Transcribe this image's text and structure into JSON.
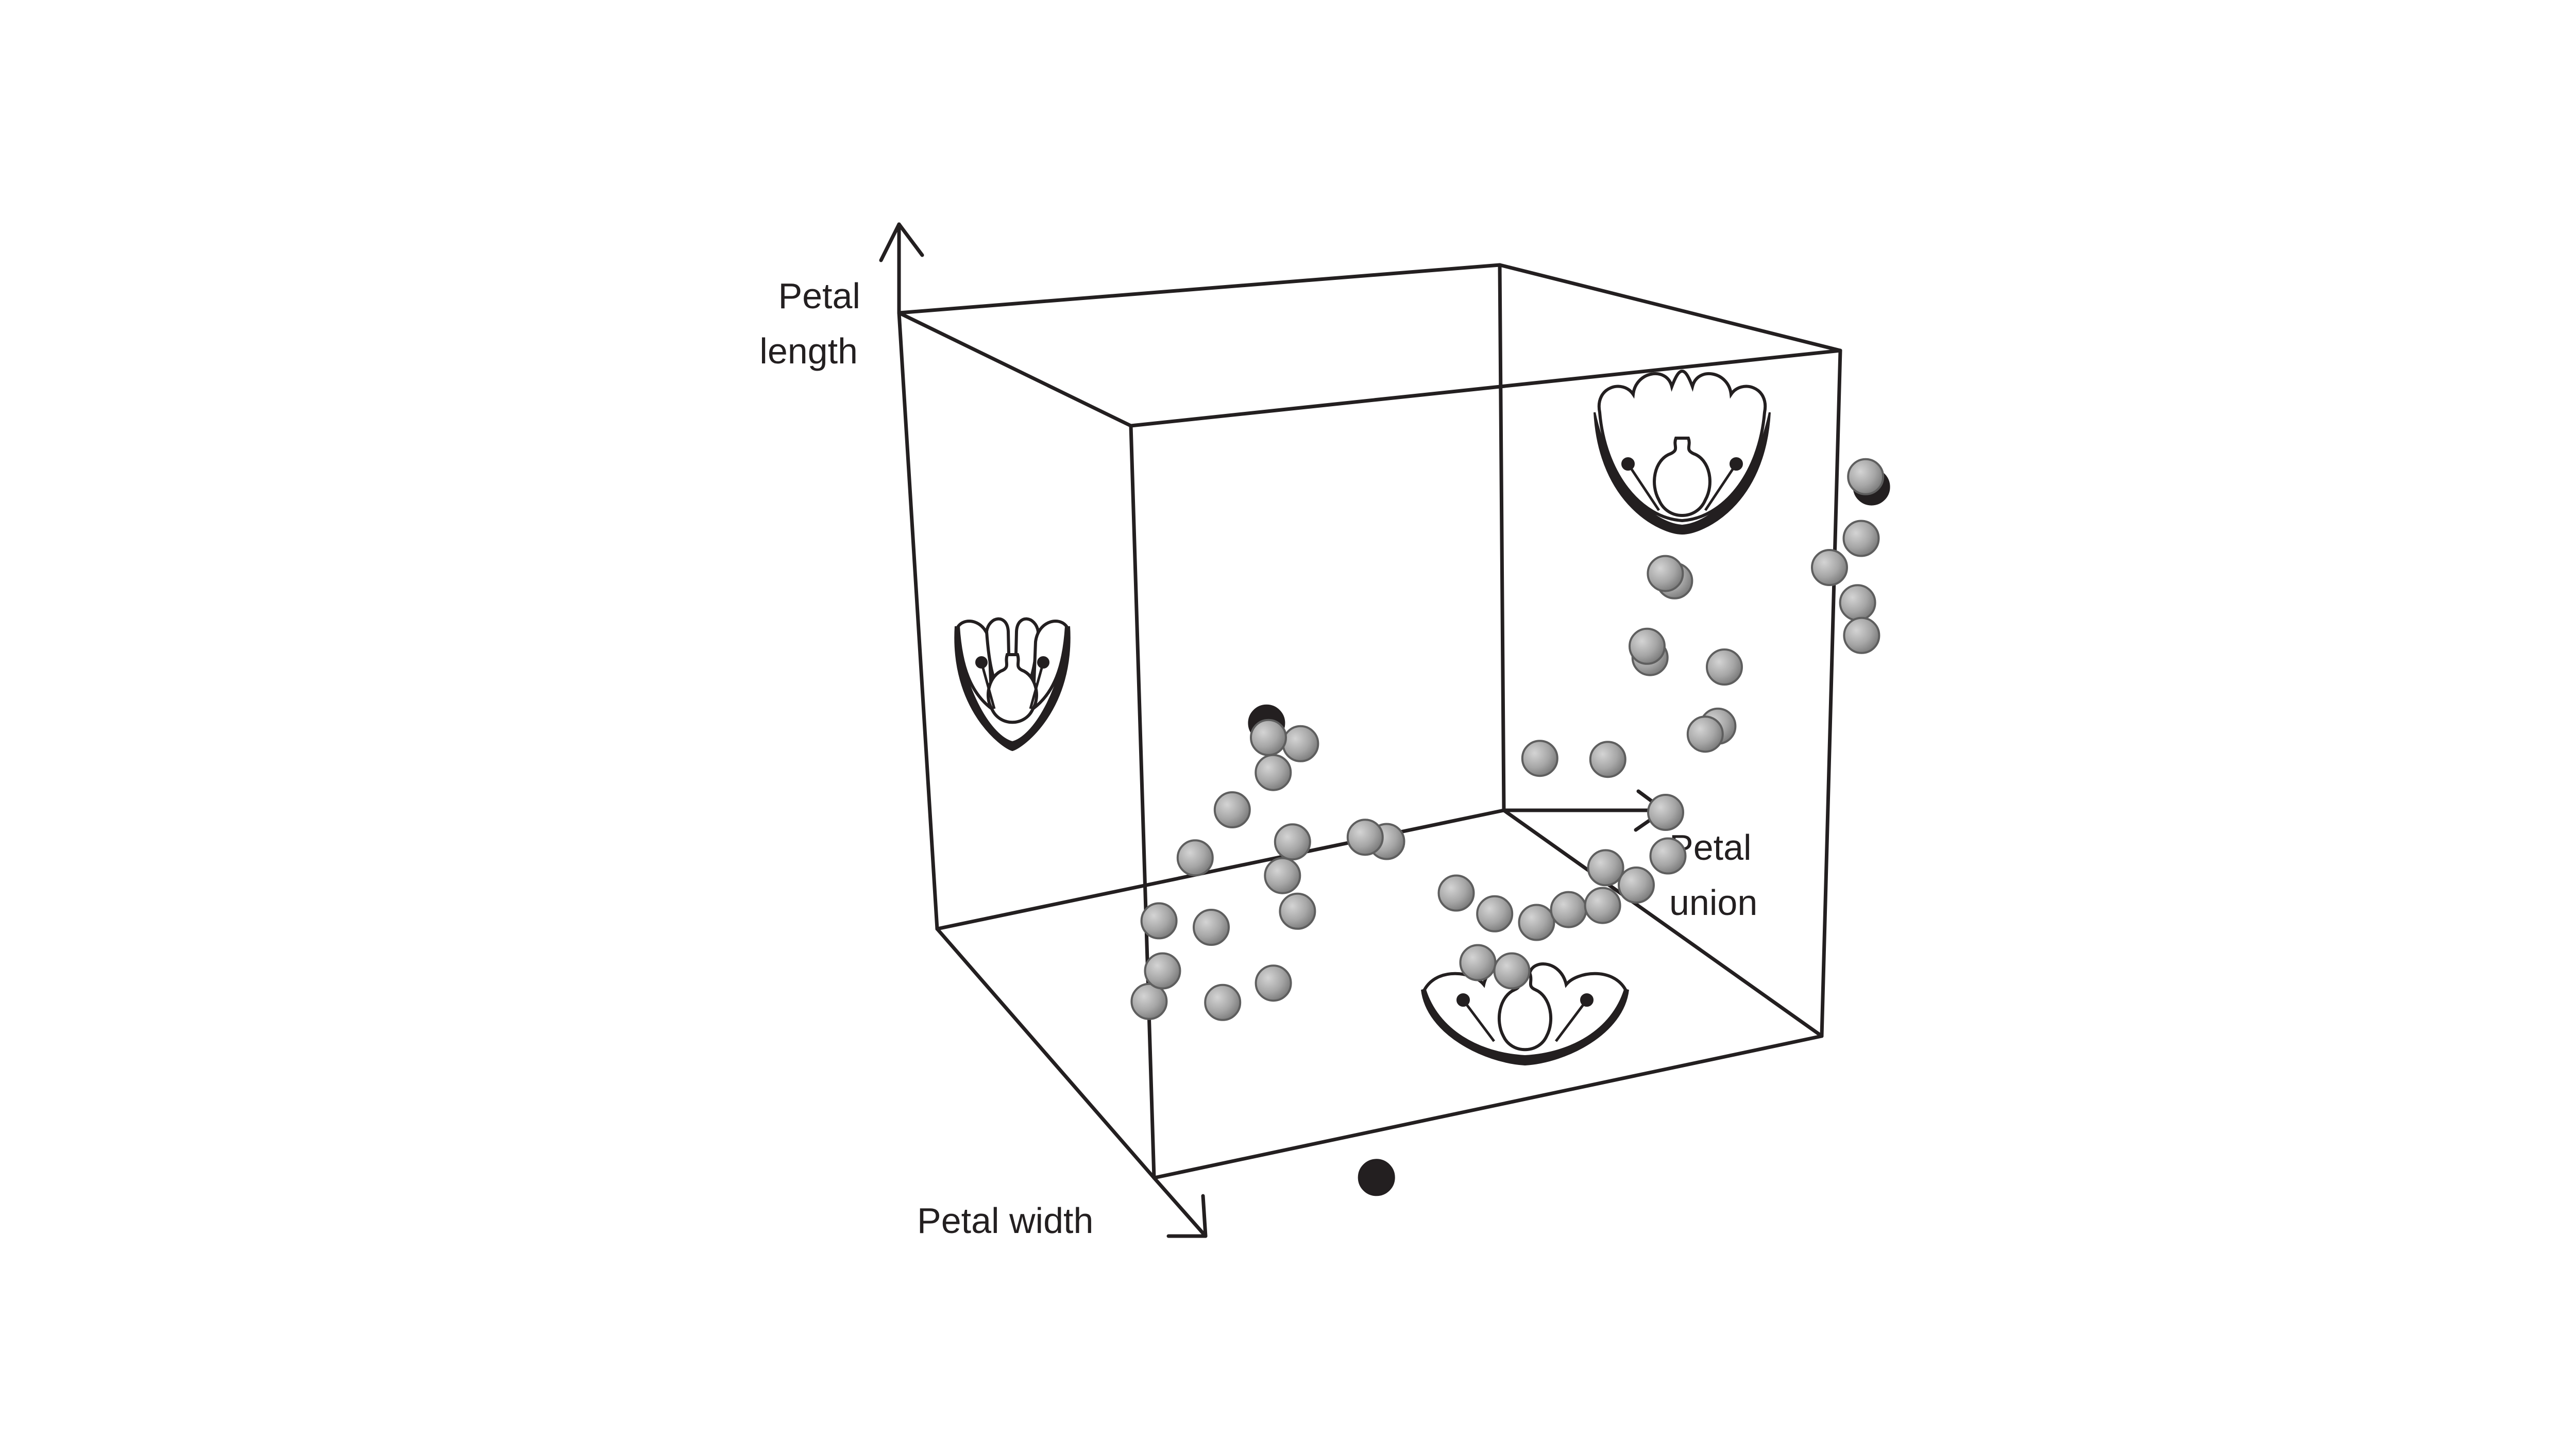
{
  "chart_data": {
    "type": "scatter",
    "dimensions": "3d",
    "axes": {
      "x": {
        "label_line1": "Petal",
        "label_line2": "union"
      },
      "y": {
        "label": "Petal width"
      },
      "z": {
        "label_line1": "Petal",
        "label_line2": "length"
      }
    },
    "grid": false,
    "legend": "none",
    "colors": {
      "point": "#a6a6a6",
      "point_highlight": "#231f20",
      "line": "#231f20"
    },
    "series": [
      {
        "highlight": false,
        "points": [
          [
            -0.82,
            -0.55,
            -0.15
          ],
          [
            -0.86,
            -0.58,
            -0.05
          ],
          [
            -0.8,
            -0.62,
            -0.08
          ],
          [
            -0.88,
            -0.48,
            -0.25
          ],
          [
            -0.92,
            -0.4,
            -0.38
          ],
          [
            -0.72,
            -0.5,
            -0.35
          ],
          [
            -0.94,
            -0.3,
            -0.55
          ],
          [
            -0.9,
            -0.22,
            -0.78
          ],
          [
            -0.8,
            -0.15,
            -0.65
          ],
          [
            -0.7,
            -0.2,
            -0.52
          ],
          [
            -0.62,
            -0.35,
            -0.4
          ],
          [
            -0.55,
            -0.32,
            -0.5
          ],
          [
            -0.58,
            -0.1,
            -0.72
          ],
          [
            -0.5,
            -0.18,
            -0.68
          ],
          [
            -0.42,
            -0.4,
            -0.28
          ],
          [
            -0.4,
            -0.45,
            -0.31
          ],
          [
            0.15,
            -0.05,
            -0.3
          ],
          [
            0.22,
            -0.1,
            -0.38
          ],
          [
            0.3,
            -0.15,
            -0.42
          ],
          [
            0.3,
            0.05,
            -0.48
          ],
          [
            0.4,
            0.05,
            -0.5
          ],
          [
            0.42,
            -0.12,
            -0.36
          ],
          [
            0.46,
            -0.2,
            -0.25
          ],
          [
            0.52,
            -0.12,
            -0.34
          ],
          [
            0.55,
            -0.2,
            -0.3
          ],
          [
            0.6,
            -0.25,
            -0.22
          ],
          [
            0.55,
            -0.3,
            -0.1
          ],
          [
            0.18,
            -0.3,
            0.05
          ],
          [
            0.38,
            -0.3,
            0.06
          ],
          [
            0.58,
            -0.4,
            0.12
          ],
          [
            0.6,
            -0.42,
            0.14
          ],
          [
            0.55,
            -0.5,
            0.3
          ],
          [
            0.34,
            -0.48,
            0.36
          ],
          [
            0.34,
            -0.49,
            0.32
          ],
          [
            0.29,
            -0.6,
            0.55
          ],
          [
            0.3,
            -0.62,
            0.52
          ],
          [
            0.6,
            -0.8,
            0.52
          ],
          [
            0.65,
            -0.85,
            0.6
          ],
          [
            0.7,
            -0.78,
            0.42
          ],
          [
            0.62,
            -0.9,
            0.78
          ],
          [
            0.85,
            -0.62,
            0.38
          ]
        ]
      },
      {
        "highlight": true,
        "points": [
          [
            -0.9,
            -0.62,
            -0.02
          ],
          [
            0.52,
            0.65,
            -0.95
          ],
          [
            0.62,
            -0.92,
            0.74
          ]
        ]
      }
    ],
    "illustrations": [
      {
        "near": "low petal union, high petal length",
        "kind": "free-petal flower"
      },
      {
        "near": "high petal union, high petal length",
        "kind": "fused-petal flower"
      },
      {
        "near": "high petal union, high petal width",
        "kind": "wide fused-petal flower"
      }
    ]
  }
}
